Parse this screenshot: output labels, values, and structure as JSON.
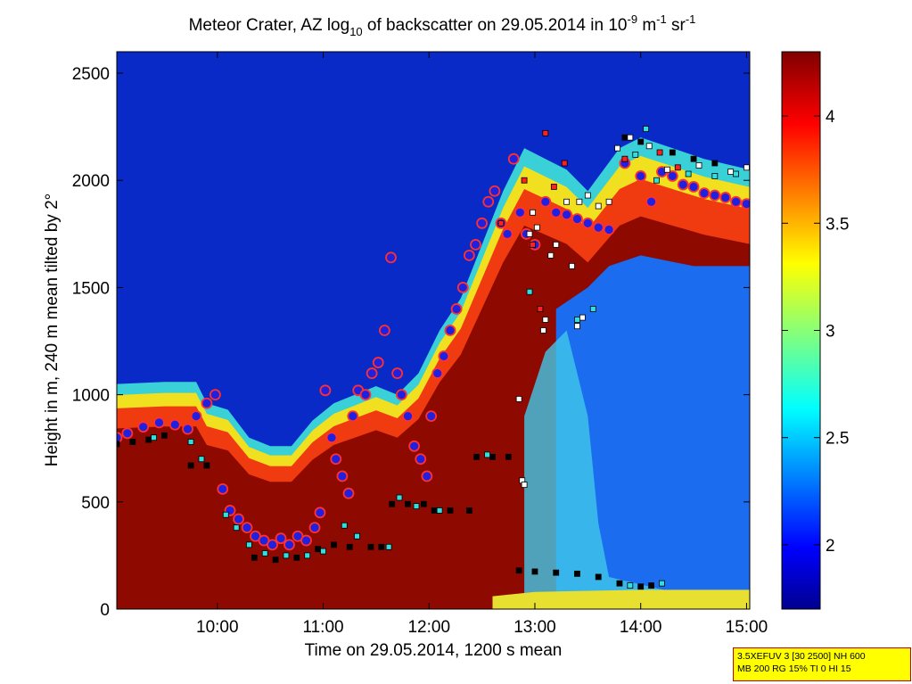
{
  "chart_data": {
    "type": "heatmap",
    "title_parts": {
      "a": "Meteor Crater, AZ log",
      "sub": "10",
      "b": " of backscatter on 29.05.2014 in 10",
      "sup1": "-9",
      "c": " m",
      "sup2": "-1",
      "d": " sr",
      "sup3": "-1"
    },
    "xlabel": "Time on 29.05.2014, 1200 s mean",
    "ylabel": "Height in m, 240 m mean tilted by 2°",
    "x_range_hours": [
      9.05,
      15.03
    ],
    "ylim": [
      0,
      2600
    ],
    "xticks": [
      {
        "value": 10,
        "label": "10:00"
      },
      {
        "value": 11,
        "label": "11:00"
      },
      {
        "value": 12,
        "label": "12:00"
      },
      {
        "value": 13,
        "label": "13:00"
      },
      {
        "value": 14,
        "label": "14:00"
      },
      {
        "value": 15,
        "label": "15:00"
      }
    ],
    "yticks": [
      0,
      500,
      1000,
      1500,
      2000,
      2500
    ],
    "colorbar": {
      "range": [
        1.7,
        4.3
      ],
      "ticks": [
        2,
        2.5,
        3,
        3.5,
        4
      ],
      "colormap": "jet"
    },
    "layer_top": [
      [
        9.05,
        1050
      ],
      [
        9.5,
        1060
      ],
      [
        9.8,
        1060
      ],
      [
        9.9,
        960
      ],
      [
        10.1,
        930
      ],
      [
        10.3,
        800
      ],
      [
        10.5,
        760
      ],
      [
        10.7,
        760
      ],
      [
        10.9,
        880
      ],
      [
        11.1,
        960
      ],
      [
        11.3,
        1000
      ],
      [
        11.5,
        1040
      ],
      [
        11.7,
        1000
      ],
      [
        11.9,
        1100
      ],
      [
        12.1,
        1300
      ],
      [
        12.3,
        1450
      ],
      [
        12.5,
        1700
      ],
      [
        12.7,
        1950
      ],
      [
        12.9,
        2150
      ],
      [
        13.1,
        2100
      ],
      [
        13.3,
        2050
      ],
      [
        13.5,
        1950
      ],
      [
        13.8,
        2150
      ],
      [
        14.0,
        2200
      ],
      [
        14.3,
        2150
      ],
      [
        14.6,
        2100
      ],
      [
        15.03,
        2050
      ]
    ],
    "series": [
      {
        "name": "circles",
        "marker": "circle",
        "color": "#2020e0",
        "edge": "#ff3030",
        "points": [
          [
            9.05,
            800
          ],
          [
            9.15,
            820
          ],
          [
            9.3,
            850
          ],
          [
            9.45,
            870
          ],
          [
            9.6,
            860
          ],
          [
            9.72,
            840
          ],
          [
            9.8,
            900
          ],
          [
            9.9,
            960
          ],
          [
            9.98,
            1000
          ],
          [
            10.05,
            560
          ],
          [
            10.12,
            460
          ],
          [
            10.2,
            420
          ],
          [
            10.28,
            380
          ],
          [
            10.36,
            340
          ],
          [
            10.44,
            320
          ],
          [
            10.52,
            300
          ],
          [
            10.6,
            330
          ],
          [
            10.68,
            300
          ],
          [
            10.76,
            340
          ],
          [
            10.84,
            320
          ],
          [
            10.92,
            380
          ],
          [
            10.97,
            450
          ],
          [
            11.02,
            1020
          ],
          [
            11.08,
            800
          ],
          [
            11.12,
            700
          ],
          [
            11.18,
            620
          ],
          [
            11.24,
            540
          ],
          [
            11.28,
            900
          ],
          [
            11.33,
            1020
          ],
          [
            11.4,
            1000
          ],
          [
            11.46,
            1100
          ],
          [
            11.52,
            1150
          ],
          [
            11.58,
            1300
          ],
          [
            11.64,
            1640
          ],
          [
            11.7,
            1100
          ],
          [
            11.74,
            1000
          ],
          [
            11.8,
            900
          ],
          [
            11.86,
            760
          ],
          [
            11.92,
            700
          ],
          [
            11.98,
            620
          ],
          [
            12.02,
            900
          ],
          [
            12.08,
            1100
          ],
          [
            12.14,
            1180
          ],
          [
            12.2,
            1300
          ],
          [
            12.26,
            1400
          ],
          [
            12.32,
            1500
          ],
          [
            12.38,
            1650
          ],
          [
            12.44,
            1700
          ],
          [
            12.5,
            1800
          ],
          [
            12.56,
            1900
          ],
          [
            12.62,
            1950
          ],
          [
            12.68,
            1800
          ],
          [
            12.74,
            1750
          ],
          [
            12.8,
            2100
          ],
          [
            12.86,
            1850
          ],
          [
            12.92,
            1750
          ],
          [
            13.0,
            1700
          ],
          [
            13.1,
            1900
          ],
          [
            13.2,
            1850
          ],
          [
            13.3,
            1840
          ],
          [
            13.4,
            1820
          ],
          [
            13.5,
            1800
          ],
          [
            13.6,
            1780
          ],
          [
            13.7,
            1770
          ],
          [
            13.85,
            2080
          ],
          [
            14.0,
            2020
          ],
          [
            14.1,
            1900
          ],
          [
            14.2,
            2040
          ],
          [
            14.3,
            2020
          ],
          [
            14.4,
            1980
          ],
          [
            14.5,
            1970
          ],
          [
            14.6,
            1940
          ],
          [
            14.7,
            1930
          ],
          [
            14.8,
            1920
          ],
          [
            14.9,
            1900
          ],
          [
            15.0,
            1890
          ]
        ]
      },
      {
        "name": "black-squares",
        "marker": "square",
        "color": "#000000",
        "points": [
          [
            9.05,
            770
          ],
          [
            9.2,
            780
          ],
          [
            9.35,
            790
          ],
          [
            9.5,
            810
          ],
          [
            9.75,
            670
          ],
          [
            9.9,
            670
          ],
          [
            10.35,
            240
          ],
          [
            10.55,
            230
          ],
          [
            10.75,
            240
          ],
          [
            10.95,
            280
          ],
          [
            11.1,
            300
          ],
          [
            11.25,
            290
          ],
          [
            11.45,
            290
          ],
          [
            11.55,
            290
          ],
          [
            11.65,
            490
          ],
          [
            11.8,
            490
          ],
          [
            11.95,
            490
          ],
          [
            12.05,
            460
          ],
          [
            12.2,
            460
          ],
          [
            12.38,
            460
          ],
          [
            12.45,
            710
          ],
          [
            12.6,
            710
          ],
          [
            12.75,
            710
          ],
          [
            12.85,
            180
          ],
          [
            13.0,
            175
          ],
          [
            13.2,
            170
          ],
          [
            13.4,
            165
          ],
          [
            13.6,
            150
          ],
          [
            13.8,
            120
          ],
          [
            14.0,
            105
          ],
          [
            14.1,
            110
          ],
          [
            13.85,
            2200
          ],
          [
            14.0,
            2180
          ],
          [
            14.3,
            2130
          ],
          [
            14.5,
            2100
          ],
          [
            14.7,
            2080
          ]
        ]
      },
      {
        "name": "cyan-squares",
        "marker": "square",
        "color": "#30e0e0",
        "points": [
          [
            9.4,
            800
          ],
          [
            9.75,
            780
          ],
          [
            9.85,
            700
          ],
          [
            10.08,
            440
          ],
          [
            10.18,
            380
          ],
          [
            10.3,
            300
          ],
          [
            10.45,
            260
          ],
          [
            10.65,
            250
          ],
          [
            10.85,
            250
          ],
          [
            11.0,
            270
          ],
          [
            11.2,
            390
          ],
          [
            11.32,
            340
          ],
          [
            11.62,
            290
          ],
          [
            11.72,
            520
          ],
          [
            11.88,
            480
          ],
          [
            12.1,
            460
          ],
          [
            12.55,
            720
          ],
          [
            12.95,
            1480
          ],
          [
            13.4,
            1350
          ],
          [
            13.55,
            1400
          ],
          [
            13.95,
            2120
          ],
          [
            14.15,
            2000
          ],
          [
            14.45,
            2030
          ],
          [
            14.7,
            2020
          ],
          [
            14.9,
            2030
          ],
          [
            14.2,
            120
          ],
          [
            13.9,
            110
          ],
          [
            14.05,
            2240
          ]
        ]
      },
      {
        "name": "white-squares",
        "marker": "square",
        "color": "#ffffff",
        "points": [
          [
            12.85,
            980
          ],
          [
            12.88,
            600
          ],
          [
            12.9,
            580
          ],
          [
            12.95,
            1750
          ],
          [
            12.98,
            1850
          ],
          [
            13.02,
            1780
          ],
          [
            13.08,
            1300
          ],
          [
            13.1,
            1350
          ],
          [
            13.15,
            1650
          ],
          [
            13.2,
            1700
          ],
          [
            13.3,
            1900
          ],
          [
            13.35,
            1600
          ],
          [
            13.42,
            1900
          ],
          [
            13.5,
            1930
          ],
          [
            13.6,
            1880
          ],
          [
            13.7,
            1900
          ],
          [
            13.4,
            1320
          ],
          [
            13.45,
            1360
          ],
          [
            13.78,
            2150
          ],
          [
            13.9,
            2200
          ],
          [
            14.08,
            2160
          ],
          [
            14.25,
            2050
          ],
          [
            14.55,
            2070
          ],
          [
            14.85,
            2040
          ],
          [
            15.0,
            2060
          ]
        ]
      },
      {
        "name": "red-squares",
        "marker": "square",
        "color": "#ff2020",
        "points": [
          [
            12.68,
            1800
          ],
          [
            12.9,
            2000
          ],
          [
            12.98,
            1700
          ],
          [
            13.05,
            1400
          ],
          [
            13.1,
            2220
          ],
          [
            13.18,
            1970
          ],
          [
            13.28,
            2080
          ],
          [
            13.85,
            2100
          ],
          [
            14.18,
            2130
          ],
          [
            14.35,
            2060
          ]
        ]
      }
    ],
    "info_lines": [
      "3.5XEFUV 3 [30 2500] NH 600",
      "MB 200 RG 15% TI 0 HI 15"
    ]
  }
}
